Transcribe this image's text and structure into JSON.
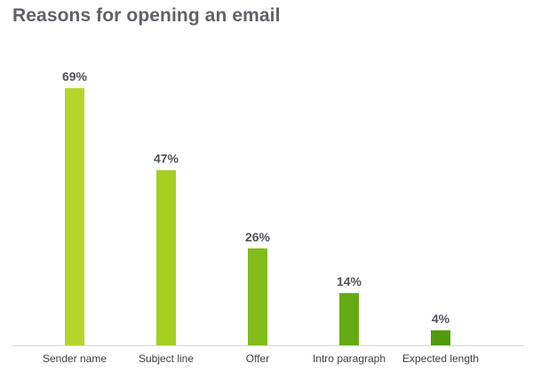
{
  "chart_data": {
    "type": "bar",
    "title": "Reasons for opening an email",
    "categories": [
      "Sender name",
      "Subject line",
      "Offer",
      "Intro paragraph",
      "Expected length"
    ],
    "values": [
      69,
      47,
      26,
      14,
      4
    ],
    "value_labels": [
      "69%",
      "47%",
      "26%",
      "14%",
      "4%"
    ],
    "bar_colors": [
      "#b4d62a",
      "#a4ce22",
      "#82bc1a",
      "#64aa12",
      "#4e9c0c"
    ],
    "axis_color": "#d8d8d8",
    "ylim": [
      0,
      75
    ],
    "grid": false,
    "legend": "none",
    "xlabel": "",
    "ylabel": ""
  }
}
